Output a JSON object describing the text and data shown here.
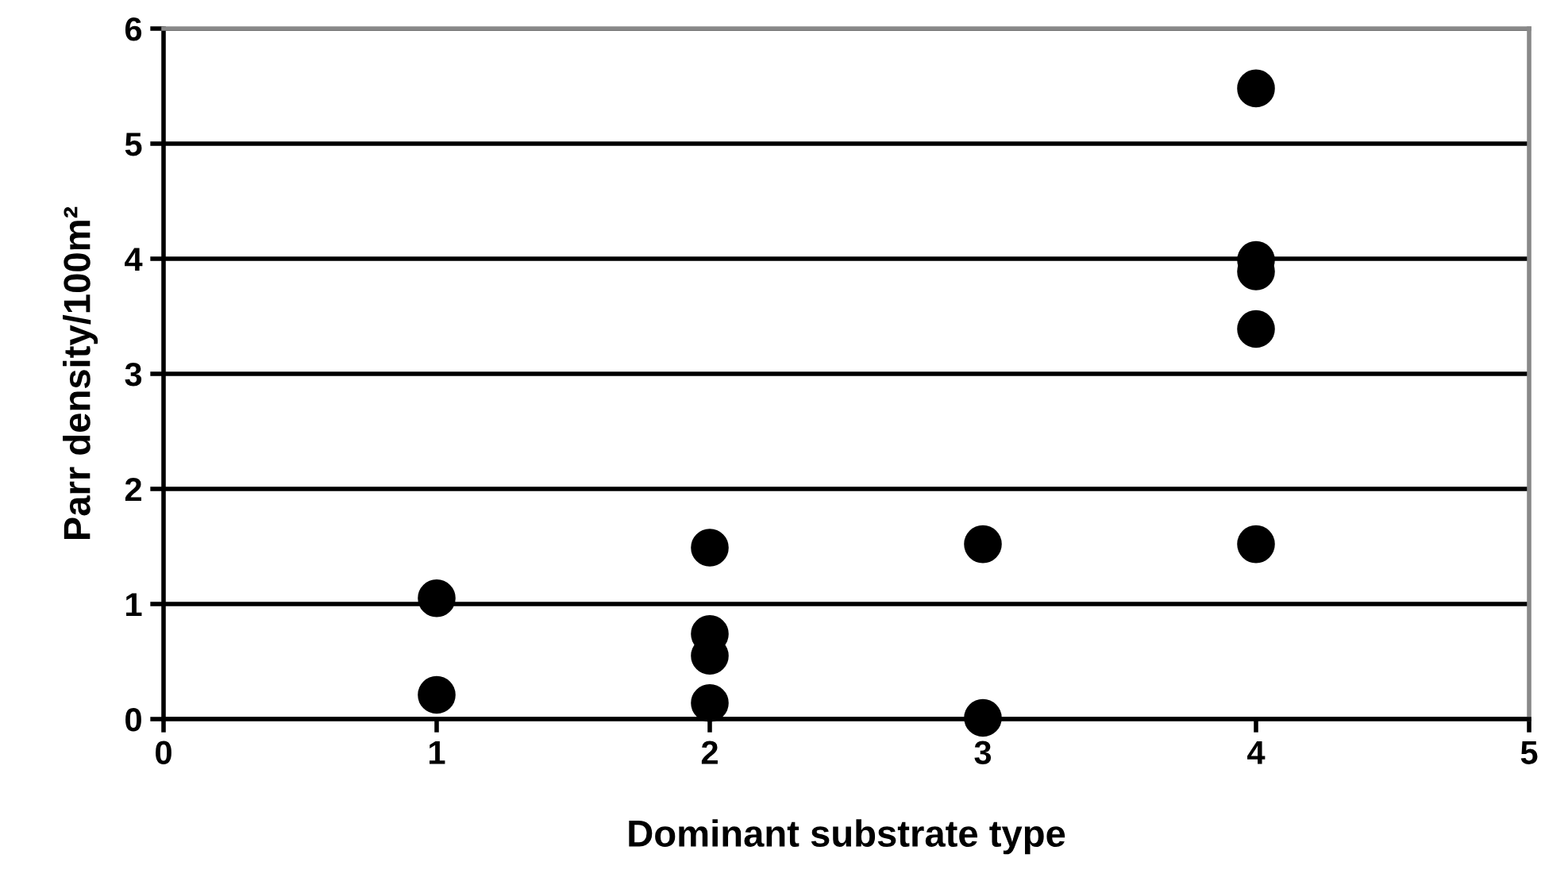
{
  "chart_data": {
    "type": "scatter",
    "xlabel": "Dominant substrate type",
    "ylabel": "Parr density/100m²",
    "series": [
      {
        "color": "#000000",
        "x": [
          1,
          1,
          2,
          2,
          2,
          2,
          3,
          3,
          4,
          4,
          4,
          4,
          4
        ],
        "values": [
          1.05,
          0.21,
          1.49,
          0.74,
          0.55,
          0.14,
          1.52,
          0.01,
          5.48,
          3.99,
          3.89,
          3.39,
          1.52
        ]
      }
    ],
    "xlim": [
      0,
      5
    ],
    "xticks": [
      0,
      1,
      2,
      3,
      4,
      5
    ],
    "ylim": [
      0,
      6
    ],
    "yticks": [
      0,
      1,
      2,
      3,
      4,
      5,
      6
    ],
    "grid": "y",
    "marker": "circle",
    "legend": false
  }
}
